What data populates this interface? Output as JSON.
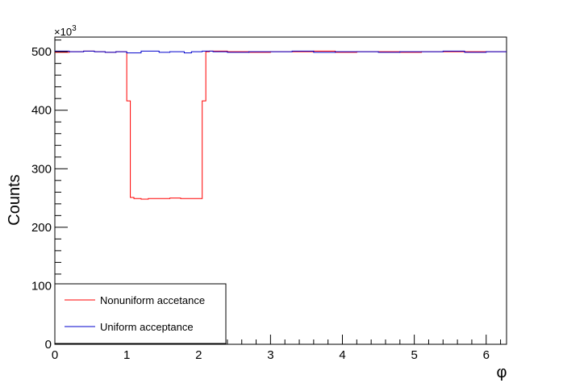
{
  "chart_data": {
    "type": "line",
    "style": "step-histogram",
    "xlabel": "φ",
    "ylabel": "Counts",
    "y_exponent_label": "×10",
    "y_exponent_power": "3",
    "xlim": [
      0,
      6.2832
    ],
    "ylim": [
      0,
      525
    ],
    "x_ticks": [
      0,
      1,
      2,
      3,
      4,
      5,
      6
    ],
    "y_ticks": [
      0,
      100,
      200,
      300,
      400,
      500
    ],
    "x_tick_labels": [
      "0",
      "1",
      "2",
      "3",
      "4",
      "5",
      "6"
    ],
    "y_tick_labels": [
      "0",
      "100",
      "200",
      "300",
      "400",
      "500"
    ],
    "grid": false,
    "legend_position": "bottom-left",
    "series": [
      {
        "name": "Nonuniform accetance",
        "color": "#ff0000",
        "bin_edges": [
          0,
          0.2,
          0.4,
          0.55,
          0.7,
          0.85,
          1.0,
          1.05,
          1.1,
          1.2,
          1.3,
          1.45,
          1.6,
          1.75,
          1.9,
          2.05,
          2.1,
          2.15,
          2.4,
          2.7,
          3.0,
          3.3,
          3.6,
          3.9,
          4.2,
          4.5,
          4.8,
          5.1,
          5.4,
          5.7,
          6.0,
          6.2832
        ],
        "values": [
          499,
          500,
          501,
          500,
          499,
          500,
          416,
          251,
          249,
          248,
          249,
          249,
          250,
          249,
          249,
          416,
          500,
          501,
          500,
          499,
          500,
          500,
          501,
          499,
          500,
          500,
          499,
          500,
          500,
          500,
          500
        ]
      },
      {
        "name": "Uniform acceptance",
        "color": "#0000cc",
        "bin_edges": [
          0,
          0.2,
          0.4,
          0.55,
          0.7,
          0.85,
          1.0,
          1.2,
          1.45,
          1.6,
          1.8,
          1.9,
          2.05,
          2.2,
          2.4,
          2.7,
          3.0,
          3.3,
          3.6,
          3.9,
          4.2,
          4.5,
          4.8,
          5.1,
          5.4,
          5.7,
          6.0,
          6.2832
        ],
        "values": [
          501,
          500,
          501,
          500,
          499,
          500,
          498,
          501,
          499,
          500,
          498,
          500,
          501,
          500,
          499,
          500,
          500,
          501,
          499,
          500,
          500,
          499,
          500,
          500,
          501,
          499,
          500
        ]
      }
    ]
  }
}
